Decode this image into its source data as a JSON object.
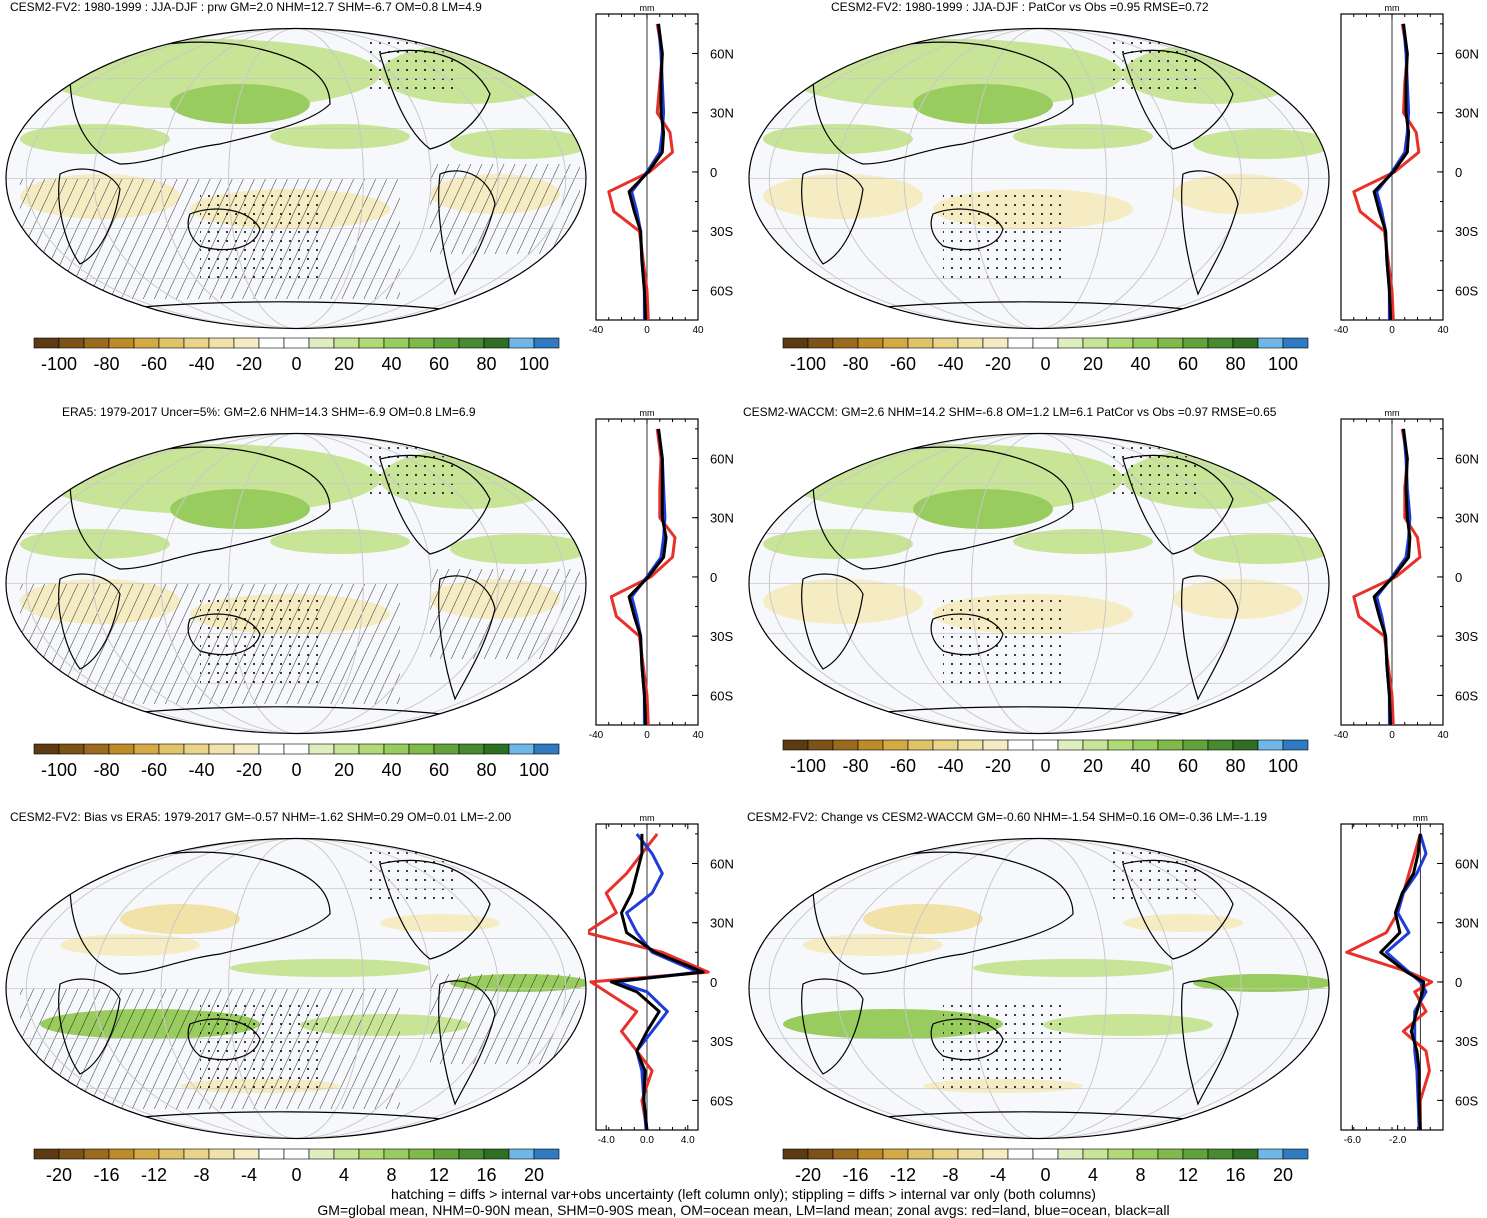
{
  "colors": {
    "brown_to_blue": [
      "#5c3b12",
      "#7c5218",
      "#9a6b1f",
      "#bd8b28",
      "#d4aa45",
      "#e0c26a",
      "#ead48a",
      "#f1e2a8",
      "#f5ecc3",
      "#ffffff",
      "#ffffff",
      "#dfeec0",
      "#c7e497",
      "#b1da77",
      "#99cc5e",
      "#7fba4a",
      "#62a23b",
      "#478a2f",
      "#2f6f24",
      "#6fb7e6",
      "#2f7ac0"
    ],
    "land": "#e8312b",
    "ocean": "#1f3cd8",
    "all": "#000000"
  },
  "panels": [
    {
      "title": "CESM2-FV2: 1980-1999 : JJA-DJF : prw GM=2.0 NHM=12.7 SHM=-6.7 OM=0.8 LM=4.9",
      "colorbar_ticks": [
        "-100",
        "-80",
        "-60",
        "-40",
        "-20",
        "0",
        "20",
        "40",
        "60",
        "80",
        "100"
      ],
      "profile_unit": "mm",
      "profile_xticks": [
        "-40",
        "0",
        "40"
      ],
      "profile_yticks": [
        "60N",
        "30N",
        "0",
        "30S",
        "60S"
      ]
    },
    {
      "title": "CESM2-FV2: 1980-1999 : JJA-DJF : PatCor vs Obs =0.95 RMSE=0.72",
      "colorbar_ticks": [
        "-100",
        "-80",
        "-60",
        "-40",
        "-20",
        "0",
        "20",
        "40",
        "60",
        "80",
        "100"
      ],
      "profile_unit": "mm",
      "profile_xticks": [
        "-40",
        "0",
        "40"
      ],
      "profile_yticks": [
        "60N",
        "30N",
        "0",
        "30S",
        "60S"
      ]
    },
    {
      "title": "ERA5: 1979-2017 Uncer=5%: GM=2.6 NHM=14.3 SHM=-6.9 OM=0.8 LM=6.9",
      "colorbar_ticks": [
        "-100",
        "-80",
        "-60",
        "-40",
        "-20",
        "0",
        "20",
        "40",
        "60",
        "80",
        "100"
      ],
      "profile_unit": "mm",
      "profile_xticks": [
        "-40",
        "0",
        "40"
      ],
      "profile_yticks": [
        "60N",
        "30N",
        "0",
        "30S",
        "60S"
      ]
    },
    {
      "title": "CESM2-WACCM: GM=2.6 NHM=14.2 SHM=-6.8 OM=1.2 LM=6.1 PatCor vs Obs =0.97 RMSE=0.65",
      "colorbar_ticks": [
        "-100",
        "-80",
        "-60",
        "-40",
        "-20",
        "0",
        "20",
        "40",
        "60",
        "80",
        "100"
      ],
      "profile_unit": "mm",
      "profile_xticks": [
        "-40",
        "0",
        "40"
      ],
      "profile_yticks": [
        "60N",
        "30N",
        "0",
        "30S",
        "60S"
      ]
    },
    {
      "title": "CESM2-FV2: Bias vs ERA5: 1979-2017 GM=-0.57 NHM=-1.62 SHM=0.29 OM=0.01 LM=-2.00",
      "colorbar_ticks": [
        "-20",
        "-16",
        "-12",
        "-8",
        "-4",
        "0",
        "4",
        "8",
        "12",
        "16",
        "20"
      ],
      "profile_unit": "mm",
      "profile_xticks": [
        "-4.0",
        "0.0",
        "4.0"
      ],
      "profile_yticks": [
        "60N",
        "30N",
        "0",
        "30S",
        "60S"
      ]
    },
    {
      "title": "CESM2-FV2: Change vs CESM2-WACCM GM=-0.60 NHM=-1.54 SHM=0.16 OM=-0.36 LM=-1.19",
      "colorbar_ticks": [
        "-20",
        "-16",
        "-12",
        "-8",
        "-4",
        "0",
        "4",
        "8",
        "12",
        "16",
        "20"
      ],
      "profile_unit": "mm",
      "profile_xticks": [
        "-6.0",
        "-2.0"
      ],
      "profile_yticks": [
        "60N",
        "30N",
        "0",
        "30S",
        "60S"
      ]
    }
  ],
  "footer": {
    "line1": "hatching = diffs > internal var+obs uncertainty (left column only); stippling = diffs > internal var only (both columns)",
    "line2": "GM=global mean, NHM=0-90N mean, SHM=0-90S mean, OM=ocean mean, LM=land mean; zonal avgs: red=land, blue=ocean, black=all"
  },
  "chart_data": [
    {
      "type": "line",
      "title": "CESM2-FV2: 1980-1999 : JJA-DJF : prw GM=2.0 NHM=12.7 SHM=-6.7 OM=0.8 LM=4.9",
      "xlabel": "mm",
      "xlim": [
        -40,
        40
      ],
      "ylim": [
        -75,
        80
      ],
      "y": [
        75,
        60,
        45,
        30,
        20,
        10,
        0,
        -10,
        -20,
        -30,
        -45,
        -60,
        -75
      ],
      "series": [
        {
          "name": "land",
          "values": [
            8,
            12,
            10,
            8,
            18,
            20,
            2,
            -30,
            -26,
            -6,
            -3,
            0,
            1
          ]
        },
        {
          "name": "ocean",
          "values": [
            9,
            11,
            12,
            13,
            12,
            10,
            0,
            -12,
            -8,
            -5,
            -4,
            -2,
            -2
          ]
        },
        {
          "name": "all",
          "values": [
            9,
            12,
            11,
            11,
            13,
            12,
            1,
            -14,
            -10,
            -5,
            -4,
            -2,
            -1
          ]
        }
      ],
      "colorbar_ticks": [
        -100,
        -80,
        -60,
        -40,
        -20,
        0,
        20,
        40,
        60,
        80,
        100
      ]
    },
    {
      "type": "line",
      "title": "CESM2-FV2: 1980-1999 : JJA-DJF : PatCor vs Obs =0.95 RMSE=0.72",
      "xlabel": "mm",
      "xlim": [
        -40,
        40
      ],
      "ylim": [
        -75,
        80
      ],
      "y": [
        75,
        60,
        45,
        30,
        20,
        10,
        0,
        -10,
        -20,
        -30,
        -45,
        -60,
        -75
      ],
      "series": [
        {
          "name": "land",
          "values": [
            8,
            12,
            10,
            9,
            19,
            21,
            2,
            -30,
            -25,
            -6,
            -3,
            0,
            1
          ]
        },
        {
          "name": "ocean",
          "values": [
            9,
            11,
            12,
            13,
            12,
            10,
            0,
            -12,
            -8,
            -5,
            -4,
            -2,
            -2
          ]
        },
        {
          "name": "all",
          "values": [
            9,
            12,
            11,
            11,
            13,
            12,
            1,
            -14,
            -10,
            -5,
            -4,
            -2,
            -1
          ]
        }
      ],
      "colorbar_ticks": [
        -100,
        -80,
        -60,
        -40,
        -20,
        0,
        20,
        40,
        60,
        80,
        100
      ]
    },
    {
      "type": "line",
      "title": "ERA5: 1979-2017 Uncer=5%: GM=2.6 NHM=14.3 SHM=-6.9 OM=0.8 LM=6.9",
      "xlabel": "mm",
      "xlim": [
        -40,
        40
      ],
      "ylim": [
        -75,
        80
      ],
      "y": [
        75,
        60,
        45,
        30,
        20,
        10,
        0,
        -10,
        -20,
        -30,
        -45,
        -60,
        -75
      ],
      "series": [
        {
          "name": "land",
          "values": [
            8,
            11,
            10,
            10,
            22,
            20,
            3,
            -28,
            -24,
            -6,
            -3,
            0,
            1
          ]
        },
        {
          "name": "ocean",
          "values": [
            9,
            12,
            13,
            14,
            13,
            11,
            0,
            -12,
            -8,
            -5,
            -4,
            -2,
            -2
          ]
        },
        {
          "name": "all",
          "values": [
            9,
            12,
            12,
            12,
            15,
            13,
            1,
            -14,
            -10,
            -5,
            -4,
            -2,
            -1
          ]
        }
      ],
      "colorbar_ticks": [
        -100,
        -80,
        -60,
        -40,
        -20,
        0,
        20,
        40,
        60,
        80,
        100
      ]
    },
    {
      "type": "line",
      "title": "CESM2-WACCM: GM=2.6 NHM=14.2 SHM=-6.8 OM=1.2 LM=6.1 PatCor vs Obs =0.97 RMSE=0.65",
      "xlabel": "mm",
      "xlim": [
        -40,
        40
      ],
      "ylim": [
        -75,
        80
      ],
      "y": [
        75,
        60,
        45,
        30,
        20,
        10,
        0,
        -10,
        -20,
        -30,
        -45,
        -60,
        -75
      ],
      "series": [
        {
          "name": "land",
          "values": [
            8,
            12,
            10,
            10,
            20,
            22,
            3,
            -30,
            -26,
            -6,
            -3,
            0,
            1
          ]
        },
        {
          "name": "ocean",
          "values": [
            9,
            11,
            12,
            14,
            13,
            11,
            0,
            -12,
            -8,
            -5,
            -4,
            -2,
            -2
          ]
        },
        {
          "name": "all",
          "values": [
            9,
            12,
            11,
            12,
            14,
            13,
            1,
            -14,
            -10,
            -5,
            -4,
            -2,
            -1
          ]
        }
      ],
      "colorbar_ticks": [
        -100,
        -80,
        -60,
        -40,
        -20,
        0,
        20,
        40,
        60,
        80,
        100
      ]
    },
    {
      "type": "line",
      "title": "CESM2-FV2: Bias vs ERA5: 1979-2017 GM=-0.57 NHM=-1.62 SHM=0.29 OM=0.01 LM=-2.00",
      "xlabel": "mm",
      "xlim": [
        -5,
        5
      ],
      "ylim": [
        -75,
        80
      ],
      "y": [
        75,
        65,
        55,
        45,
        35,
        25,
        15,
        5,
        0,
        -5,
        -15,
        -25,
        -35,
        -45,
        -60,
        -75
      ],
      "series": [
        {
          "name": "land",
          "values": [
            1.0,
            -0.5,
            -2.0,
            -4.0,
            -3.0,
            -6.0,
            1.5,
            6.0,
            -5.5,
            -4.0,
            -1.0,
            -2.5,
            -1.0,
            0.5,
            -0.5,
            0.0
          ]
        },
        {
          "name": "ocean",
          "values": [
            -1.0,
            0.5,
            1.5,
            0.5,
            -2.0,
            -1.0,
            0.5,
            5.0,
            -3.0,
            0.0,
            2.0,
            0.5,
            -1.0,
            -0.5,
            -0.3,
            -0.1
          ]
        },
        {
          "name": "all",
          "values": [
            -0.5,
            -0.5,
            -1.0,
            -1.5,
            -2.5,
            -2.0,
            0.8,
            5.5,
            -3.5,
            -1.0,
            1.2,
            0.0,
            -1.0,
            -0.2,
            -0.3,
            0.0
          ]
        }
      ],
      "colorbar_ticks": [
        -20,
        -16,
        -12,
        -8,
        -4,
        0,
        4,
        8,
        12,
        16,
        20
      ]
    },
    {
      "type": "line",
      "title": "CESM2-FV2: Change vs CESM2-WACCM GM=-0.60 NHM=-1.54 SHM=0.16 OM=-0.36 LM=-1.19",
      "xlabel": "mm",
      "xlim": [
        -7,
        2
      ],
      "ylim": [
        -75,
        80
      ],
      "y": [
        75,
        65,
        55,
        45,
        35,
        25,
        15,
        5,
        0,
        -5,
        -15,
        -25,
        -35,
        -45,
        -60,
        -75
      ],
      "series": [
        {
          "name": "land",
          "values": [
            0.0,
            -0.5,
            -1.0,
            -1.5,
            -2.0,
            -3.0,
            -6.5,
            -1.0,
            1.0,
            -0.5,
            0.5,
            -1.5,
            0.5,
            0.8,
            0.0,
            0.0
          ]
        },
        {
          "name": "ocean",
          "values": [
            0.0,
            0.5,
            -0.3,
            -1.5,
            -2.0,
            -1.0,
            -3.0,
            -1.0,
            0.0,
            0.5,
            -0.5,
            -0.5,
            -0.5,
            -0.3,
            -0.2,
            -0.1
          ]
        },
        {
          "name": "all",
          "values": [
            0.0,
            -0.2,
            -0.6,
            -1.6,
            -2.2,
            -1.8,
            -3.5,
            -1.2,
            0.3,
            0.2,
            -0.3,
            -0.8,
            -0.3,
            -0.1,
            -0.1,
            0.0
          ]
        }
      ],
      "colorbar_ticks": [
        -20,
        -16,
        -12,
        -8,
        -4,
        0,
        4,
        8,
        12,
        16,
        20
      ]
    }
  ]
}
